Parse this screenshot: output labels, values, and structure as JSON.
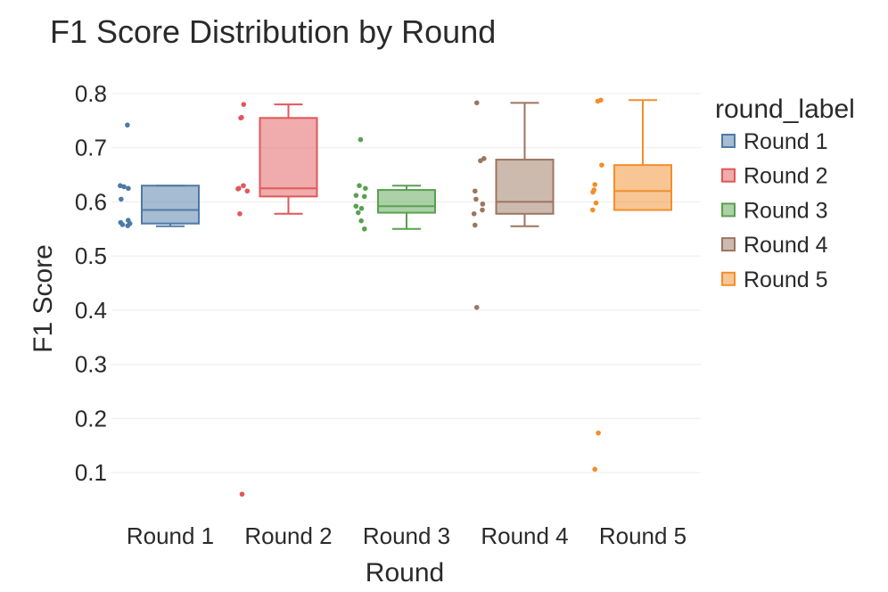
{
  "chart_data": {
    "type": "box",
    "title": "F1 Score Distribution by Round",
    "xlabel": "Round",
    "ylabel": "F1 Score",
    "ylim": [
      0.03,
      0.81
    ],
    "yticks": [
      0.1,
      0.2,
      0.3,
      0.4,
      0.5,
      0.6,
      0.7,
      0.8
    ],
    "grid": true,
    "legend": {
      "title": "round_label",
      "position": "right"
    },
    "categories": [
      "Round 1",
      "Round 2",
      "Round 3",
      "Round 4",
      "Round 5"
    ],
    "series": [
      {
        "name": "Round 1",
        "color": "#4e79a7",
        "box": {
          "min": 0.555,
          "q1": 0.56,
          "median": 0.585,
          "q3": 0.63,
          "max": 0.63
        },
        "points": [
          0.742,
          0.63,
          0.628,
          0.625,
          0.605,
          0.566,
          0.562,
          0.56,
          0.558,
          0.556
        ]
      },
      {
        "name": "Round 2",
        "color": "#e15759",
        "box": {
          "min": 0.578,
          "q1": 0.61,
          "median": 0.625,
          "q3": 0.755,
          "max": 0.78
        },
        "points": [
          0.78,
          0.756,
          0.755,
          0.63,
          0.625,
          0.624,
          0.62,
          0.578,
          0.06
        ]
      },
      {
        "name": "Round 3",
        "color": "#59a14f",
        "box": {
          "min": 0.55,
          "q1": 0.58,
          "median": 0.592,
          "q3": 0.622,
          "max": 0.63
        },
        "points": [
          0.715,
          0.63,
          0.625,
          0.612,
          0.61,
          0.592,
          0.588,
          0.58,
          0.565,
          0.55
        ]
      },
      {
        "name": "Round 4",
        "color": "#9c755f",
        "box": {
          "min": 0.555,
          "q1": 0.578,
          "median": 0.6,
          "q3": 0.678,
          "max": 0.783
        },
        "points": [
          0.783,
          0.68,
          0.676,
          0.62,
          0.605,
          0.596,
          0.585,
          0.578,
          0.557,
          0.405
        ]
      },
      {
        "name": "Round 5",
        "color": "#f28e2b",
        "box": {
          "min": 0.585,
          "q1": 0.585,
          "median": 0.62,
          "q3": 0.668,
          "max": 0.788
        },
        "points": [
          0.788,
          0.786,
          0.668,
          0.632,
          0.622,
          0.618,
          0.598,
          0.585,
          0.173,
          0.106
        ]
      }
    ]
  }
}
